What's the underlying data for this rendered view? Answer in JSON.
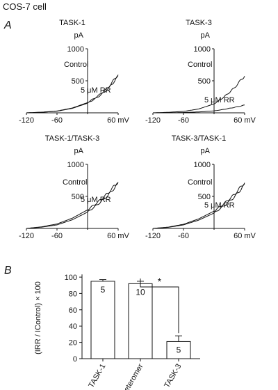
{
  "figure": {
    "title": "COS-7 cell",
    "panel_a_label": "A",
    "panel_b_label": "B"
  },
  "chart_data": [
    {
      "type": "line",
      "title": "TASK-1",
      "ylabel": "pA",
      "xlabel_unit": "60 mV",
      "x_ticks": [
        "-120",
        "-60"
      ],
      "y_ticks": [
        "1000",
        "500"
      ],
      "xlim": [
        -120,
        60
      ],
      "ylim": [
        0,
        1000
      ],
      "series": [
        {
          "name": "Control",
          "x": [
            -120,
            -90,
            -60,
            -30,
            0,
            20,
            40,
            60
          ],
          "y": [
            0,
            10,
            28,
            75,
            160,
            260,
            390,
            600
          ]
        },
        {
          "name": "5 μM RR",
          "x": [
            -120,
            -90,
            -60,
            -30,
            0,
            20,
            40,
            60
          ],
          "y": [
            0,
            9,
            25,
            70,
            150,
            245,
            370,
            570
          ]
        }
      ]
    },
    {
      "type": "line",
      "title": "TASK-3",
      "ylabel": "pA",
      "xlabel_unit": "60 mV",
      "x_ticks": [
        "-120",
        "-60"
      ],
      "y_ticks": [
        "1000",
        "500"
      ],
      "xlim": [
        -120,
        60
      ],
      "ylim": [
        0,
        1000
      ],
      "series": [
        {
          "name": "Control",
          "x": [
            -120,
            -90,
            -60,
            -30,
            0,
            20,
            40,
            60
          ],
          "y": [
            0,
            8,
            22,
            60,
            140,
            250,
            390,
            580
          ]
        },
        {
          "name": "5 μM RR",
          "x": [
            -120,
            -90,
            -60,
            -30,
            0,
            20,
            40,
            60
          ],
          "y": [
            0,
            2,
            5,
            14,
            30,
            55,
            85,
            120
          ]
        }
      ]
    },
    {
      "type": "line",
      "title": "TASK-1/TASK-3",
      "ylabel": "pA",
      "xlabel_unit": "60 mV",
      "x_ticks": [
        "-120",
        "-60"
      ],
      "y_ticks": [
        "1000",
        "500"
      ],
      "xlim": [
        -120,
        60
      ],
      "ylim": [
        0,
        1000
      ],
      "series": [
        {
          "name": "Control",
          "x": [
            -120,
            -90,
            -60,
            -30,
            0,
            20,
            40,
            60
          ],
          "y": [
            0,
            25,
            70,
            160,
            290,
            410,
            550,
            730
          ]
        },
        {
          "name": "5 μM RR",
          "x": [
            -120,
            -90,
            -60,
            -30,
            0,
            20,
            40,
            60
          ],
          "y": [
            0,
            20,
            55,
            135,
            255,
            375,
            515,
            700
          ]
        }
      ]
    },
    {
      "type": "line",
      "title": "TASK-3/TASK-1",
      "ylabel": "pA",
      "xlabel_unit": "60 mV",
      "x_ticks": [
        "-120",
        "-60"
      ],
      "y_ticks": [
        "1000",
        "500"
      ],
      "xlim": [
        -120,
        60
      ],
      "ylim": [
        0,
        1000
      ],
      "series": [
        {
          "name": "Control",
          "x": [
            -120,
            -90,
            -60,
            -30,
            0,
            20,
            40,
            60
          ],
          "y": [
            0,
            20,
            65,
            150,
            270,
            390,
            530,
            720
          ]
        },
        {
          "name": "5 μM RR",
          "x": [
            -120,
            -90,
            -60,
            -30,
            0,
            20,
            40,
            60
          ],
          "y": [
            0,
            17,
            55,
            130,
            240,
            355,
            490,
            680
          ]
        }
      ]
    },
    {
      "type": "bar",
      "categories": [
        "TASK-1",
        "Heteromer",
        "TASK-3"
      ],
      "values": [
        95,
        92,
        21
      ],
      "errors": [
        2,
        3,
        7
      ],
      "n_labels": [
        "5",
        "10",
        "5"
      ],
      "ylabel": "(IRR / IControl) × 100",
      "y_ticks": [
        "0",
        "20",
        "40",
        "60",
        "80",
        "100"
      ],
      "ylim": [
        0,
        100
      ],
      "significance": "*"
    }
  ]
}
